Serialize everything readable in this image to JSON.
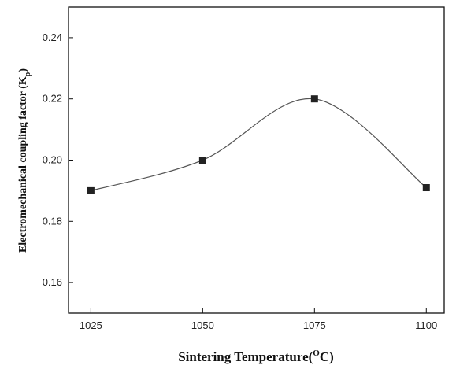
{
  "chart_data": {
    "type": "line",
    "title": "",
    "xlabel": {
      "main": "Sintering Temperature(",
      "sup": "O",
      "tail": "C)"
    },
    "ylabel": {
      "main": "Electromechanical coupling factor (K",
      "sub": "p",
      "tail": ")"
    },
    "x": [
      1025,
      1050,
      1075,
      1100
    ],
    "series": [
      {
        "values": [
          0.19,
          0.2,
          0.22,
          0.191
        ]
      }
    ],
    "xlim": [
      1020,
      1104
    ],
    "ylim": [
      0.15,
      0.25
    ],
    "xticks": [
      1025,
      1050,
      1075,
      1100
    ],
    "xtick_labels": [
      "1025",
      "1050",
      "1075",
      "1100"
    ],
    "yticks": [
      0.16,
      0.18,
      0.2,
      0.22,
      0.24
    ],
    "ytick_labels": [
      "0.16",
      "0.18",
      "0.20",
      "0.22",
      "0.24"
    ],
    "grid": false,
    "legend": "none",
    "marker": "square",
    "line_style": "smooth",
    "colors": {
      "line": "#555555",
      "marker": "#222222",
      "axis": "#111111"
    }
  }
}
